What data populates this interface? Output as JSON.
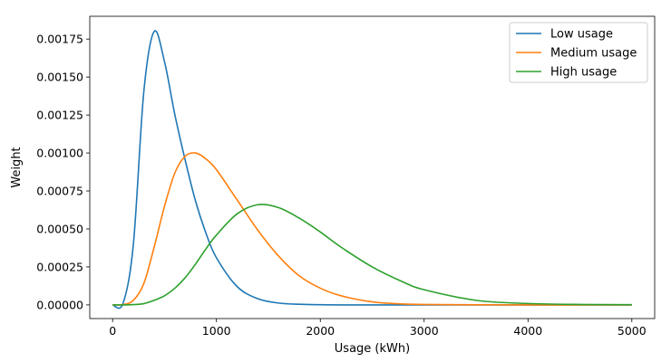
{
  "chart_data": {
    "type": "line",
    "title": "",
    "xlabel": "Usage (kWh)",
    "ylabel": "Weight",
    "xlim": [
      -220,
      5220
    ],
    "ylim": [
      -9e-05,
      0.0019
    ],
    "x_ticks": [
      0,
      1000,
      2000,
      3000,
      4000,
      5000
    ],
    "x_tick_labels": [
      "0",
      "1000",
      "2000",
      "3000",
      "4000",
      "5000"
    ],
    "y_ticks": [
      0,
      0.00025,
      0.0005,
      0.00075,
      0.001,
      0.00125,
      0.0015,
      0.00175
    ],
    "y_tick_labels": [
      "0.00000",
      "0.00025",
      "0.00050",
      "0.00075",
      "0.00100",
      "0.00125",
      "0.00150",
      "0.00175"
    ],
    "grid": false,
    "legend_position": "top-right",
    "x": [
      0,
      100,
      200,
      300,
      400,
      500,
      600,
      700,
      800,
      900,
      1000,
      1200,
      1400,
      1600,
      1800,
      2000,
      2200,
      2500,
      2800,
      3000,
      3500,
      4000,
      4500,
      5000
    ],
    "series": [
      {
        "name": "Low usage",
        "color": "#1f77b4",
        "values": [
          0.0,
          1e-05,
          0.0004,
          0.0014,
          0.0018,
          0.0016,
          0.00125,
          0.00095,
          0.00068,
          0.00047,
          0.00031,
          0.00012,
          4e-05,
          1.2e-05,
          4e-06,
          1e-06,
          0.0,
          0.0,
          0.0,
          0.0,
          0.0,
          0.0,
          0.0,
          0.0
        ]
      },
      {
        "name": "Medium usage",
        "color": "#ff7f0e",
        "values": [
          0.0,
          2e-06,
          3e-05,
          0.00014,
          0.00038,
          0.00065,
          0.00087,
          0.00098,
          0.001,
          0.00096,
          0.00089,
          0.00069,
          0.00049,
          0.00032,
          0.00019,
          0.00011,
          6e-05,
          2e-05,
          6e-06,
          3e-06,
          5e-07,
          0.0,
          0.0,
          0.0
        ]
      },
      {
        "name": "High usage",
        "color": "#2ca02c",
        "values": [
          0.0,
          0.0,
          2e-06,
          8e-06,
          3e-05,
          6e-05,
          0.00011,
          0.00018,
          0.00027,
          0.00037,
          0.00046,
          0.0006,
          0.00066,
          0.00064,
          0.00057,
          0.00048,
          0.00038,
          0.00025,
          0.00015,
          0.0001,
          3e-05,
          9e-06,
          3e-06,
          1e-06
        ]
      }
    ]
  }
}
